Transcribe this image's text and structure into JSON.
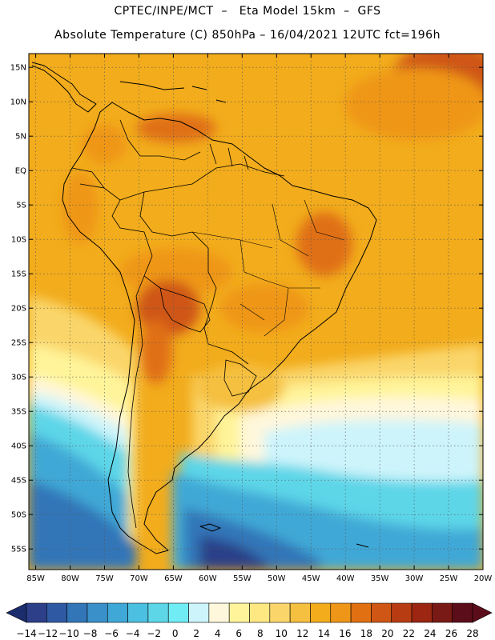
{
  "header": {
    "title_line1": "CPTEC/INPE/MCT  –   Eta Model 15km  –  GFS",
    "title_line2": "Absolute Temperature (C) 850hPa – 16/04/2021 12UTC fct=196h"
  },
  "map": {
    "lon_range": [
      -86,
      -20
    ],
    "lat_range": [
      -58,
      17
    ],
    "lat_ticks": [
      {
        "value": 15,
        "label": "15N"
      },
      {
        "value": 10,
        "label": "10N"
      },
      {
        "value": 5,
        "label": "5N"
      },
      {
        "value": 0,
        "label": "EQ"
      },
      {
        "value": -5,
        "label": "5S"
      },
      {
        "value": -10,
        "label": "10S"
      },
      {
        "value": -15,
        "label": "15S"
      },
      {
        "value": -20,
        "label": "20S"
      },
      {
        "value": -25,
        "label": "25S"
      },
      {
        "value": -30,
        "label": "30S"
      },
      {
        "value": -35,
        "label": "35S"
      },
      {
        "value": -40,
        "label": "40S"
      },
      {
        "value": -45,
        "label": "45S"
      },
      {
        "value": -50,
        "label": "50S"
      },
      {
        "value": -55,
        "label": "55S"
      }
    ],
    "lon_ticks": [
      {
        "value": -85,
        "label": "85W"
      },
      {
        "value": -80,
        "label": "80W"
      },
      {
        "value": -75,
        "label": "75W"
      },
      {
        "value": -70,
        "label": "70W"
      },
      {
        "value": -65,
        "label": "65W"
      },
      {
        "value": -60,
        "label": "60W"
      },
      {
        "value": -55,
        "label": "55W"
      },
      {
        "value": -50,
        "label": "50W"
      },
      {
        "value": -45,
        "label": "45W"
      },
      {
        "value": -40,
        "label": "40W"
      },
      {
        "value": -35,
        "label": "35W"
      },
      {
        "value": -30,
        "label": "30W"
      },
      {
        "value": -25,
        "label": "25W"
      },
      {
        "value": -20,
        "label": "20W"
      }
    ],
    "grid": "dotted",
    "background_color": "#f2ac1c"
  },
  "colorbar": {
    "labels": [
      "-14",
      "-12",
      "-10",
      "-8",
      "-6",
      "-4",
      "-2",
      "0",
      "2",
      "4",
      "6",
      "8",
      "10",
      "12",
      "14",
      "16",
      "18",
      "20",
      "22",
      "24",
      "26",
      "28"
    ],
    "colors": [
      "#2c3f88",
      "#2f5aa3",
      "#3276b8",
      "#3a90c8",
      "#3fa8d6",
      "#4cc0e0",
      "#5dd6e8",
      "#70ecf4",
      "#cdf4fb",
      "#fff7dc",
      "#fff49a",
      "#fde882",
      "#fad66a",
      "#f5c040",
      "#f2ac1c",
      "#ef9618",
      "#e07012",
      "#cf5614",
      "#b83c12",
      "#9c2612",
      "#7a1a16",
      "#5c0d1a"
    ],
    "end_left_color": "#1c2d6e",
    "end_right_color": "#5c0d1a"
  }
}
